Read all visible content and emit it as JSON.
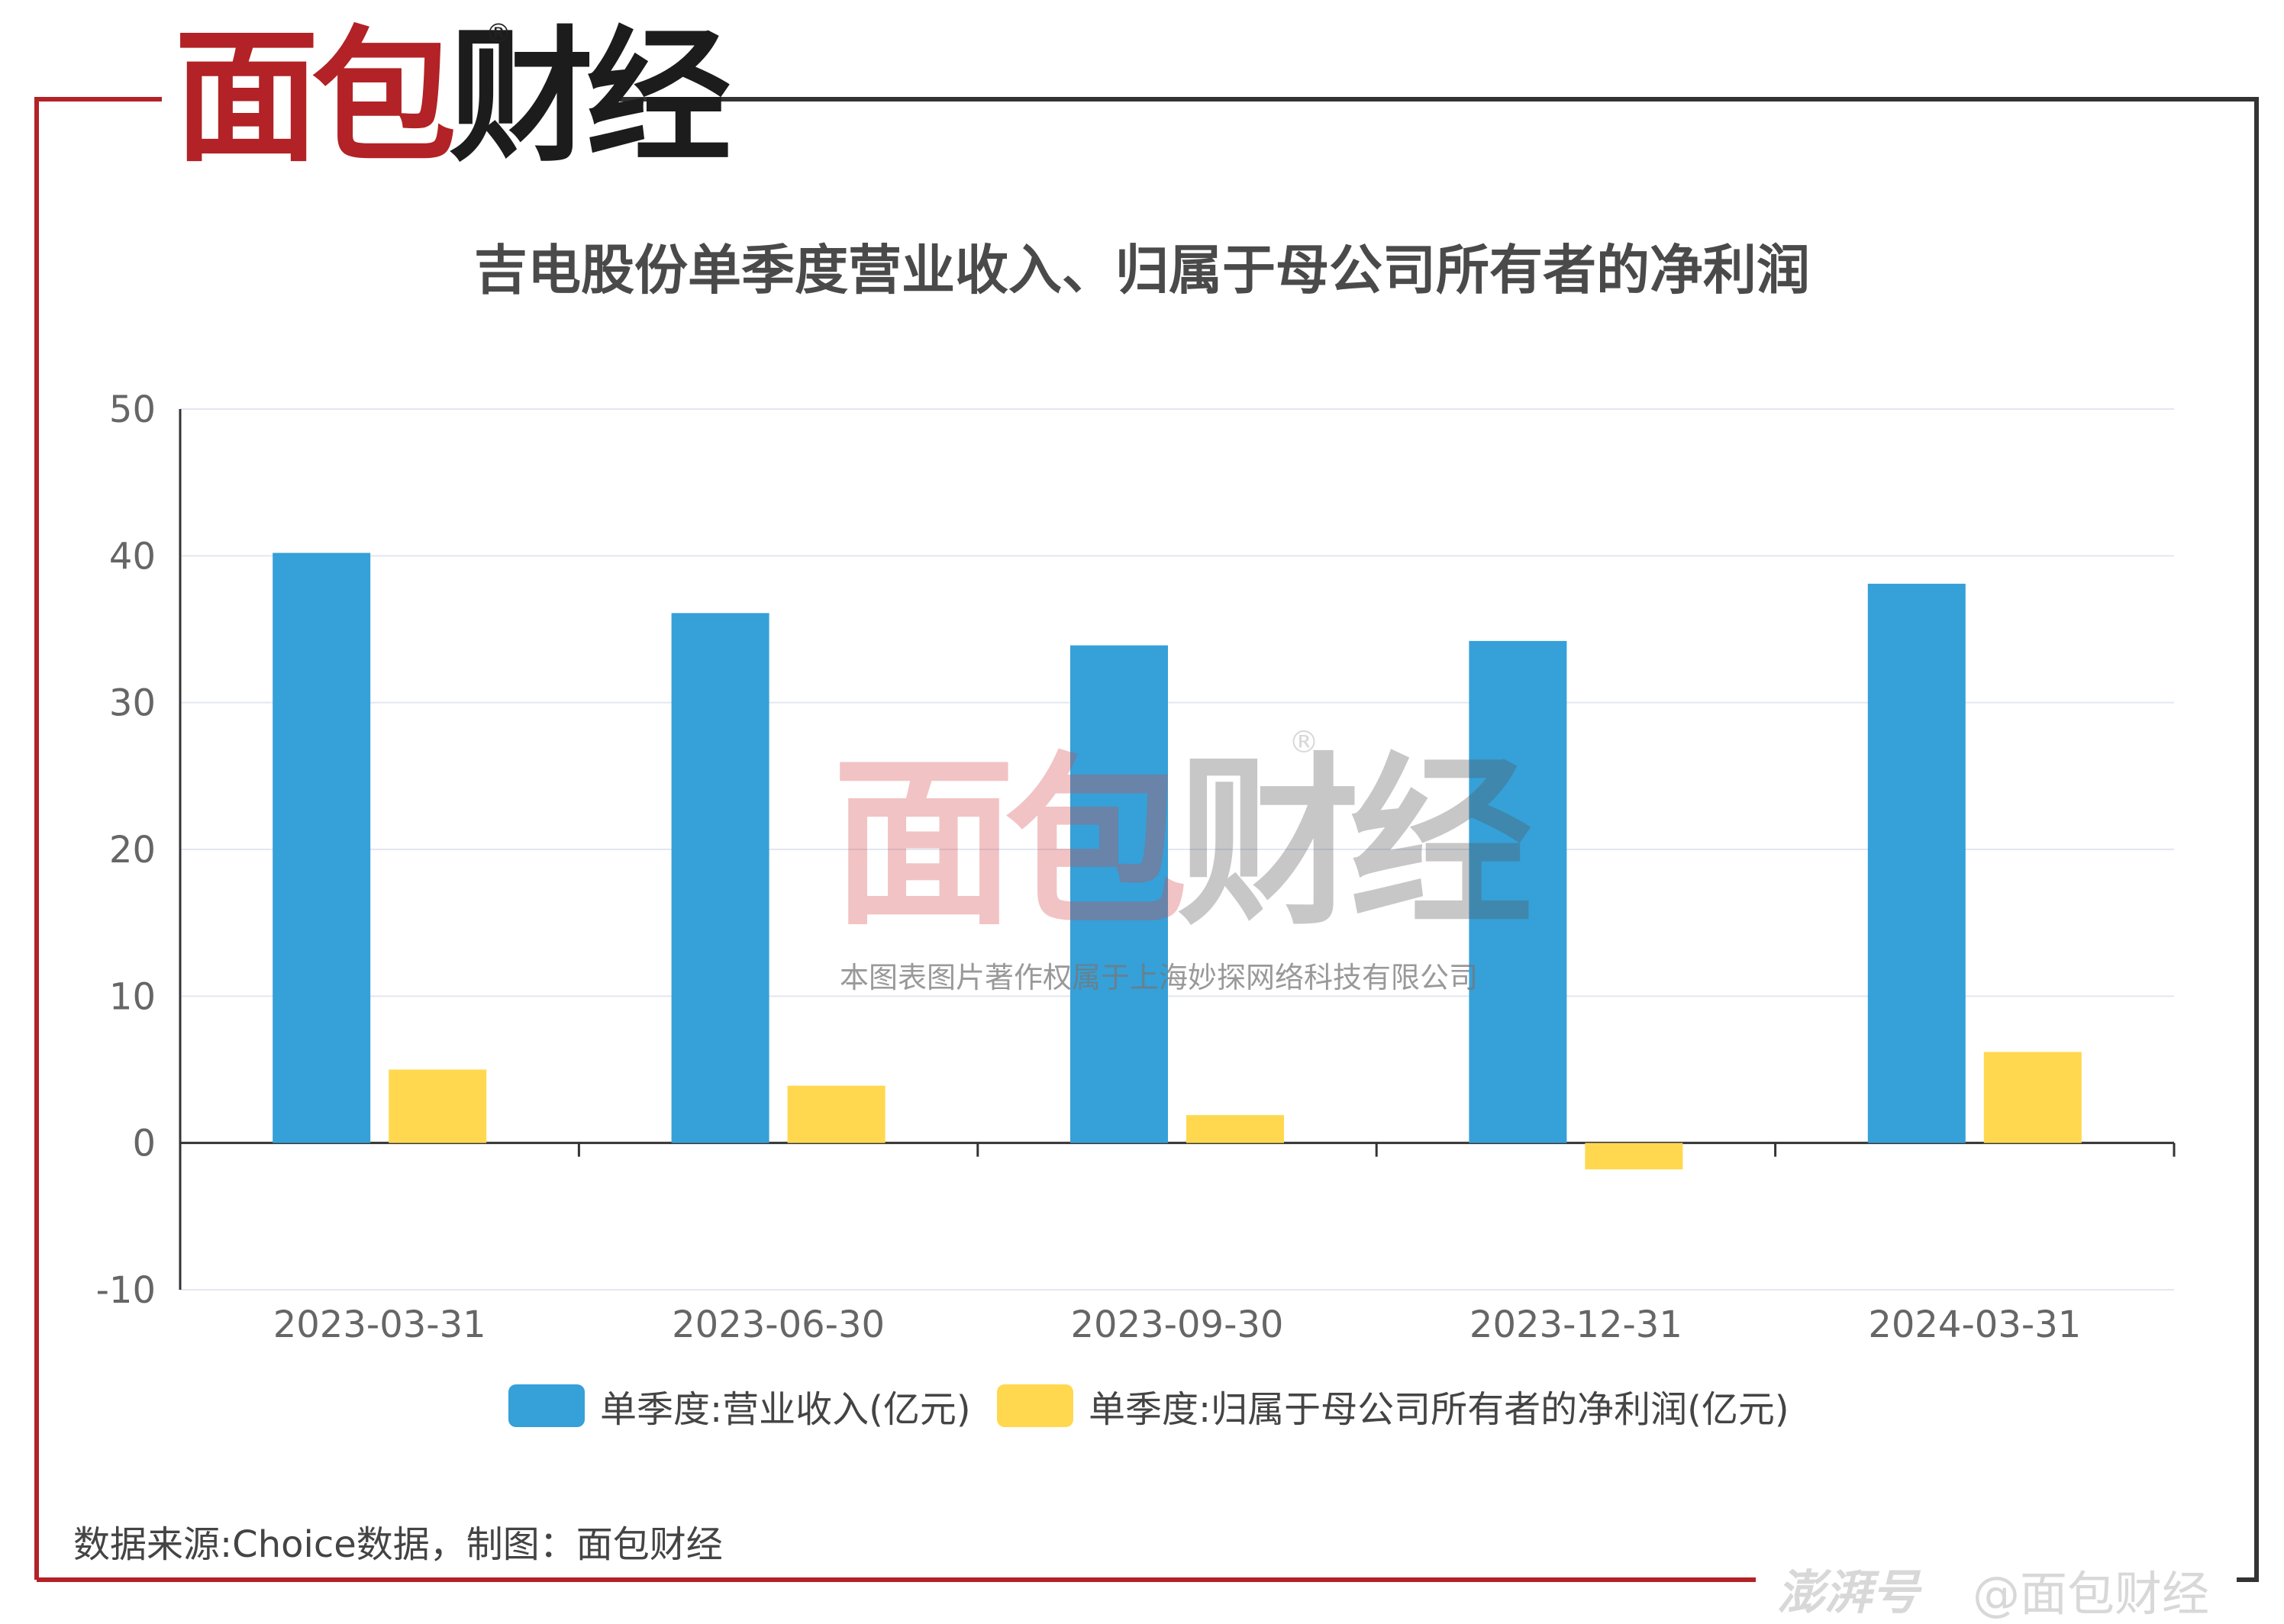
{
  "brand": {
    "logo_chars": [
      "面",
      "包",
      "财",
      "经"
    ],
    "registered_mark": "®",
    "colors": {
      "red": "#b22226",
      "dark": "#1c1c1c",
      "frame_right": "#333333"
    }
  },
  "watermark": {
    "logo_chars": [
      "面",
      "包",
      "财",
      "经"
    ],
    "registered_mark": "®",
    "copyright_note": "本图表图片著作权属于上海妙探网络科技有限公司"
  },
  "chart_data": {
    "type": "bar",
    "title": "吉电股份单季度营业收入、归属于母公司所有者的净利润",
    "categories": [
      "2023-03-31",
      "2023-06-30",
      "2023-09-30",
      "2023-12-31",
      "2024-03-31"
    ],
    "series": [
      {
        "name": "单季度:营业收入(亿元)",
        "color": "#36a0d8",
        "values": [
          40.2,
          36.1,
          33.9,
          34.2,
          38.1
        ]
      },
      {
        "name": "单季度:归属于母公司所有者的净利润(亿元)",
        "color": "#ffd84f",
        "values": [
          5.0,
          3.9,
          1.9,
          -1.8,
          6.2
        ]
      }
    ],
    "ylim": [
      -10,
      50
    ],
    "yticks": [
      "-10",
      "0",
      "10",
      "20",
      "30",
      "40",
      "50"
    ],
    "xlabel": "",
    "ylabel": "",
    "grid": true,
    "legend_position": "bottom"
  },
  "footer": {
    "source": "数据来源:Choice数据，制图：面包财经",
    "platform": "澎湃号",
    "author": "@面包财经"
  }
}
